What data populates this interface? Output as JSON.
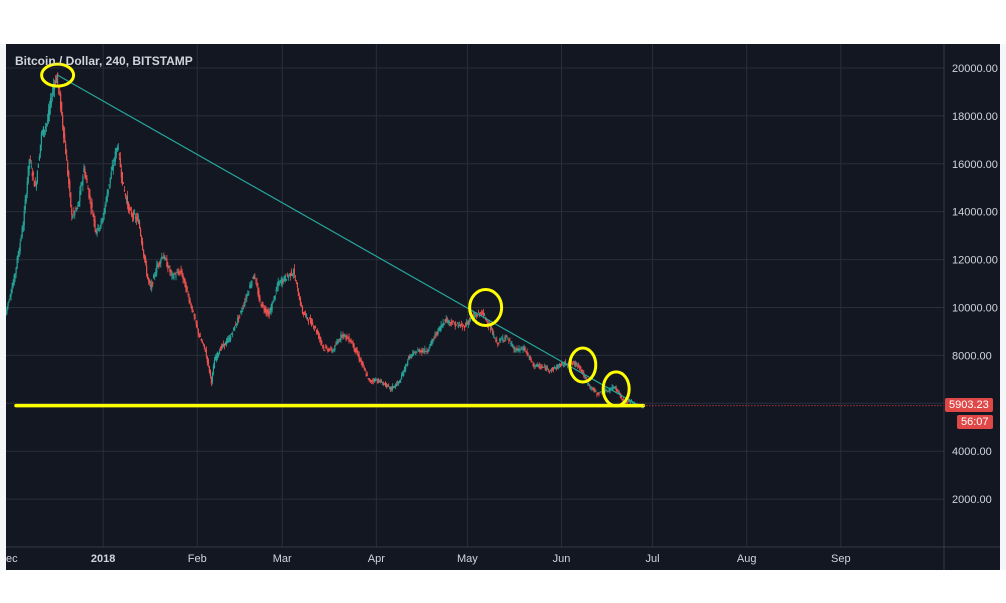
{
  "header": {
    "symbol_title": "Bitcoin / Dollar, 240, BITSTAMP"
  },
  "price_scale": {
    "ticks": [
      "2000.00",
      "4000.00",
      "6000.00",
      "8000.00",
      "10000.00",
      "12000.00",
      "14000.00",
      "16000.00",
      "18000.00",
      "20000.00"
    ],
    "last_price_label": "5903.23",
    "countdown_label": "56:07",
    "last_price_color": "#e04848"
  },
  "time_scale": {
    "labels": [
      {
        "text": "ec",
        "bold": false
      },
      {
        "text": "2018",
        "bold": true
      },
      {
        "text": "Feb",
        "bold": false
      },
      {
        "text": "Mar",
        "bold": false
      },
      {
        "text": "Apr",
        "bold": false
      },
      {
        "text": "May",
        "bold": false
      },
      {
        "text": "Jun",
        "bold": false
      },
      {
        "text": "Jul",
        "bold": false
      },
      {
        "text": "Aug",
        "bold": false
      },
      {
        "text": "Sep",
        "bold": false
      }
    ]
  },
  "chart_data": {
    "type": "line",
    "title": "Bitcoin / Dollar, 240, BITSTAMP",
    "xlabel": "",
    "ylabel": "",
    "x_range": [
      "2017-11-30",
      "2018-10-05"
    ],
    "ylim": [
      0,
      21000
    ],
    "grid": true,
    "up_color": "#26a69a",
    "down_color": "#ef5350",
    "series": [
      {
        "x": [
          "2017-11-30",
          "2017-12-03",
          "2017-12-06",
          "2017-12-08",
          "2017-12-10",
          "2017-12-12",
          "2017-12-14",
          "2017-12-16",
          "2017-12-17",
          "2017-12-18",
          "2017-12-20",
          "2017-12-22",
          "2017-12-24",
          "2017-12-26",
          "2017-12-28",
          "2017-12-30",
          "2018-01-01",
          "2018-01-03",
          "2018-01-06",
          "2018-01-08",
          "2018-01-10",
          "2018-01-13",
          "2018-01-16",
          "2018-01-17",
          "2018-01-19",
          "2018-01-21",
          "2018-01-24",
          "2018-01-27",
          "2018-01-30",
          "2018-02-02",
          "2018-02-04",
          "2018-02-06",
          "2018-02-07",
          "2018-02-09",
          "2018-02-12",
          "2018-02-16",
          "2018-02-20",
          "2018-02-22",
          "2018-02-25",
          "2018-02-28",
          "2018-03-02",
          "2018-03-05",
          "2018-03-08",
          "2018-03-12",
          "2018-03-15",
          "2018-03-18",
          "2018-03-21",
          "2018-03-24",
          "2018-03-27",
          "2018-03-30",
          "2018-04-01",
          "2018-04-04",
          "2018-04-06",
          "2018-04-09",
          "2018-04-12",
          "2018-04-15",
          "2018-04-18",
          "2018-04-21",
          "2018-04-24",
          "2018-04-27",
          "2018-04-30",
          "2018-05-03",
          "2018-05-06",
          "2018-05-08",
          "2018-05-11",
          "2018-05-14",
          "2018-05-17",
          "2018-05-20",
          "2018-05-23",
          "2018-05-26",
          "2018-05-29",
          "2018-06-01",
          "2018-06-04",
          "2018-06-07",
          "2018-06-10",
          "2018-06-13",
          "2018-06-16",
          "2018-06-19",
          "2018-06-22",
          "2018-06-24",
          "2018-06-26"
        ],
        "y": [
          9700,
          11200,
          13500,
          16200,
          15000,
          17200,
          17800,
          19300,
          19600,
          18800,
          16500,
          13800,
          14200,
          15800,
          14500,
          13200,
          13600,
          15000,
          16800,
          15000,
          14000,
          13600,
          11200,
          10800,
          11700,
          12200,
          11300,
          11500,
          10200,
          8800,
          8200,
          6900,
          7800,
          8300,
          8700,
          9900,
          11400,
          10200,
          9700,
          11000,
          11200,
          11500,
          9800,
          9200,
          8300,
          8200,
          8900,
          8600,
          7800,
          6900,
          7000,
          6800,
          6600,
          6900,
          7900,
          8200,
          8200,
          8900,
          9500,
          9300,
          9200,
          9600,
          9800,
          9400,
          8500,
          8800,
          8200,
          8300,
          7600,
          7500,
          7400,
          7600,
          7700,
          7600,
          6800,
          6400,
          6500,
          6700,
          6000,
          6100,
          5903
        ]
      }
    ],
    "trendline": {
      "from": {
        "x": "2017-12-17",
        "y": 19700
      },
      "to": {
        "x": "2018-06-28",
        "y": 5800
      },
      "color": "#26a69a"
    },
    "support_line": {
      "y": 5903,
      "from_x": "2017-11-30",
      "to_x": "2018-06-26",
      "color": "#ffff00"
    },
    "highlight_circles": [
      {
        "x": "2017-12-17",
        "y": 19700
      },
      {
        "x": "2018-05-07",
        "y": 10000
      },
      {
        "x": "2018-06-08",
        "y": 7600
      },
      {
        "x": "2018-06-19",
        "y": 6600
      }
    ],
    "highlight_color": "#ffff00"
  }
}
